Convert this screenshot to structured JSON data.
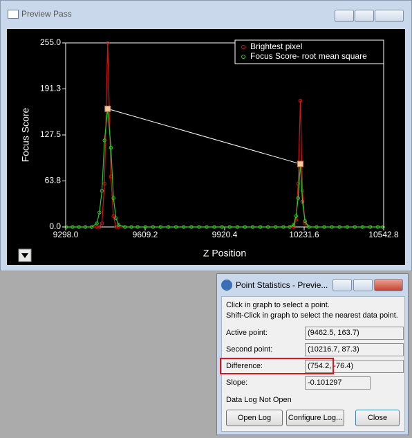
{
  "window": {
    "title": "Preview Pass"
  },
  "chart_data": {
    "type": "line",
    "x_label": "Z Position",
    "y_label": "Focus Score",
    "x": [
      9300,
      9325,
      9350,
      9375,
      9400,
      9420,
      9430,
      9440,
      9450,
      9462.5,
      9475,
      9485,
      9495,
      9505,
      9530,
      9555,
      9580,
      9610,
      9640,
      9670,
      9700,
      9730,
      9760,
      9790,
      9820,
      9850,
      9880,
      9910,
      9940,
      9970,
      10000,
      10030,
      10060,
      10090,
      10120,
      10150,
      10175,
      10190,
      10200,
      10208,
      10216.7,
      10225,
      10235,
      10250,
      10280,
      10310,
      10340,
      10370,
      10400,
      10430,
      10460,
      10490,
      10520,
      10540
    ],
    "series": [
      {
        "name": "Brightest pixel",
        "color": "#e01010",
        "values": [
          0,
          0,
          0,
          0,
          0,
          0,
          0,
          5,
          60,
          255,
          70,
          15,
          0,
          0,
          0,
          0,
          0,
          0,
          0,
          0,
          0,
          0,
          0,
          0,
          0,
          0,
          0,
          0,
          0,
          0,
          0,
          0,
          0,
          0,
          0,
          0,
          0,
          0,
          10,
          60,
          175,
          50,
          5,
          0,
          0,
          0,
          0,
          0,
          0,
          0,
          0,
          0,
          0,
          0
        ]
      },
      {
        "name": "Focus Score- root mean square",
        "color": "#20d020",
        "values": [
          0,
          0,
          0,
          0,
          0,
          5,
          20,
          50,
          120,
          163.7,
          110,
          40,
          12,
          3,
          0,
          0,
          0,
          0,
          0,
          0,
          0,
          0,
          0,
          0,
          0,
          0,
          0,
          0,
          0,
          0,
          0,
          0,
          0,
          0,
          0,
          0,
          0,
          3,
          15,
          40,
          87.3,
          35,
          8,
          0,
          0,
          0,
          0,
          0,
          0,
          0,
          0,
          0,
          0,
          0
        ]
      }
    ],
    "selected_points": {
      "x": [
        9462.5,
        10216.7
      ],
      "y": [
        163.7,
        87.3
      ]
    },
    "xlim": [
      9298.0,
      10542.8
    ],
    "xticks": [
      {
        "value": 9298.0,
        "label": "9298.0"
      },
      9609.2,
      9920.4,
      10231.6,
      10542.8
    ],
    "ylim": [
      0,
      255
    ],
    "yticks": [
      {
        "value": 0,
        "label": "0.0"
      },
      63.8,
      127.5,
      191.3,
      {
        "value": 255,
        "label": "255.0"
      }
    ],
    "legend": "upper right"
  },
  "dialog": {
    "title": "Point Statistics - Previe...",
    "instructions": [
      "Click in graph to select a point.",
      "Shift-Click in graph to select the nearest data point."
    ],
    "rows": [
      [
        "Active point:",
        "(9462.5, 163.7)"
      ],
      [
        "Second point:",
        "(10216.7, 87.3)"
      ],
      [
        "Difference:",
        "(754.2, -76.4)"
      ],
      [
        "Slope:",
        "-0.101297"
      ]
    ],
    "status": "Data Log Not Open",
    "buttons": [
      "Open Log",
      "Configure Log...",
      "Close"
    ]
  }
}
